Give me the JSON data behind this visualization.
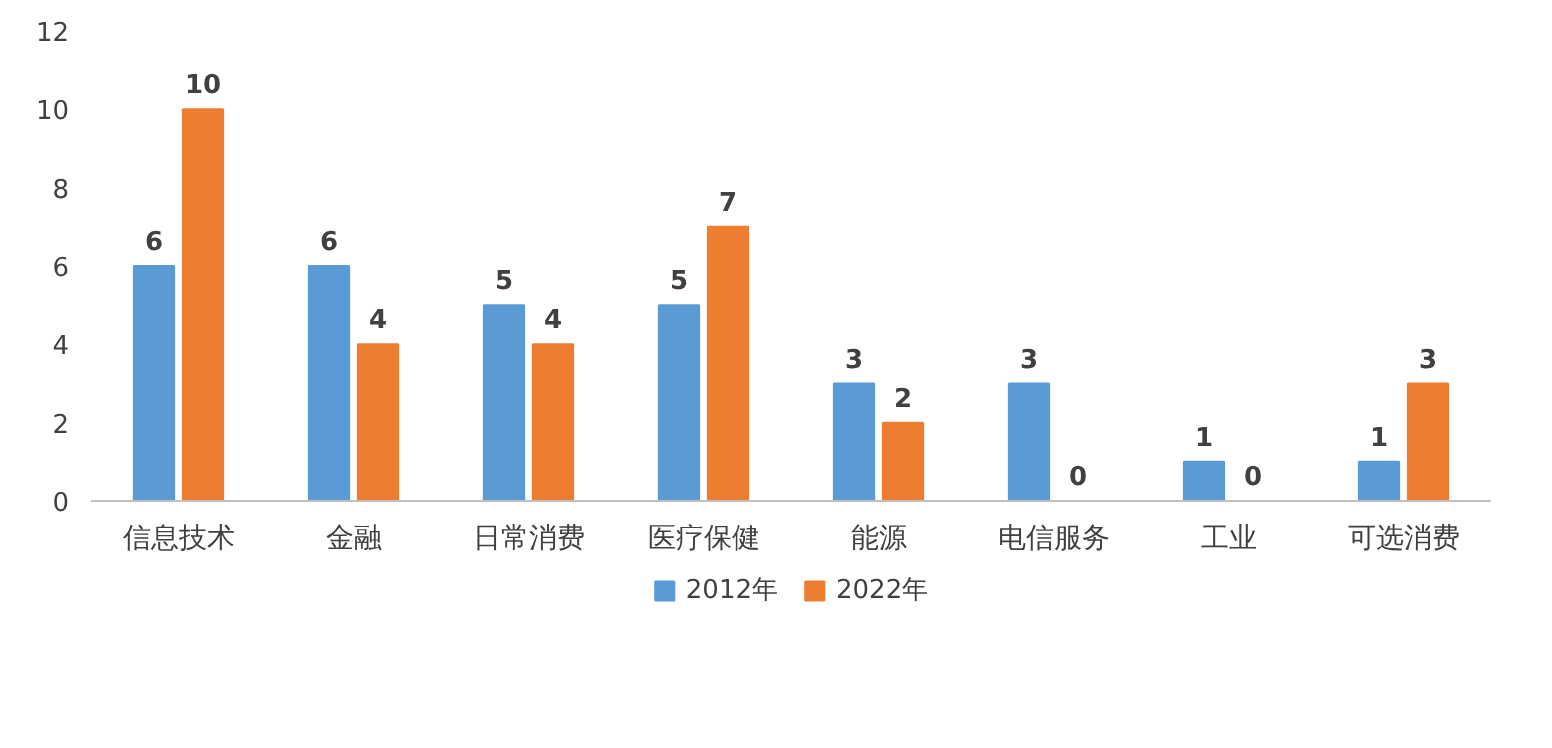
{
  "chart_data": {
    "type": "bar",
    "categories": [
      "信息技术",
      "金融",
      "日常消费",
      "医疗保健",
      "能源",
      "电信服务",
      "工业",
      "可选消费"
    ],
    "series": [
      {
        "name": "2012年",
        "color": "#5b9bd5",
        "values": [
          6,
          6,
          5,
          5,
          3,
          3,
          1,
          1
        ]
      },
      {
        "name": "2022年",
        "color": "#ed7d31",
        "values": [
          10,
          4,
          4,
          7,
          2,
          0,
          0,
          3
        ]
      }
    ],
    "ylim": [
      0,
      12
    ],
    "yticks": [
      0,
      2,
      4,
      6,
      8,
      10,
      12
    ],
    "data_labels": true,
    "legend": "bottom",
    "grid": false
  }
}
